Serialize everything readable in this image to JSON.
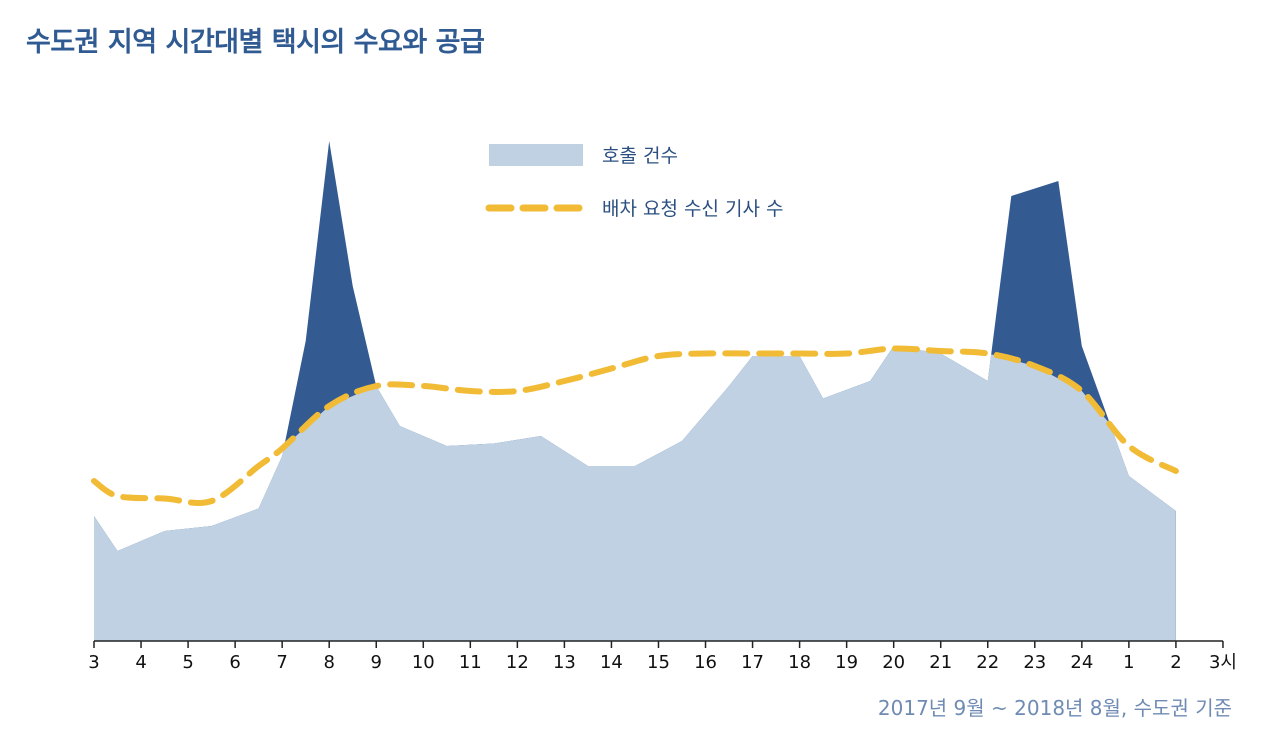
{
  "title": "수도권 지역 시간대별 택시의 수요와 공급",
  "source": "2017년 9월 ~ 2018년 8월, 수도권 기준",
  "colors": {
    "area": "#bfd1e2",
    "excess": "#335b92",
    "line": "#f1bb36",
    "axis": "#222222",
    "title": "#2f5a92"
  },
  "chart_data": {
    "type": "area",
    "categories": [
      "3",
      "4",
      "5",
      "6",
      "7",
      "8",
      "9",
      "10",
      "11",
      "12",
      "13",
      "14",
      "15",
      "16",
      "17",
      "18",
      "19",
      "20",
      "21",
      "22",
      "23",
      "24",
      "1",
      "2",
      "3시"
    ],
    "ylim": [
      0,
      100
    ],
    "grid": false,
    "legend_position": "top-center",
    "series": [
      {
        "name": "호출 건수",
        "kind": "area",
        "points": [
          [
            0,
            25
          ],
          [
            0.5,
            18
          ],
          [
            1.5,
            22
          ],
          [
            2.5,
            23
          ],
          [
            3.5,
            26.5
          ],
          [
            4,
            37
          ],
          [
            4.5,
            60
          ],
          [
            5,
            100
          ],
          [
            5.5,
            71
          ],
          [
            6,
            51
          ],
          [
            6.5,
            43
          ],
          [
            7.5,
            39
          ],
          [
            8.5,
            39.5
          ],
          [
            9.5,
            41
          ],
          [
            10.5,
            35
          ],
          [
            11.5,
            35
          ],
          [
            12.5,
            40
          ],
          [
            13.5,
            51
          ],
          [
            14,
            57
          ],
          [
            15,
            57
          ],
          [
            15.5,
            48.5
          ],
          [
            16.5,
            52
          ],
          [
            17,
            59
          ],
          [
            18,
            57.5
          ],
          [
            19,
            52
          ],
          [
            19.5,
            89
          ],
          [
            20.5,
            92
          ],
          [
            21,
            59
          ],
          [
            22,
            33
          ],
          [
            23,
            26
          ]
        ]
      },
      {
        "name": "배차 요청 수신 기사 수",
        "kind": "dashed-line",
        "points": [
          [
            0,
            32
          ],
          [
            0.5,
            29
          ],
          [
            1.5,
            28.5
          ],
          [
            2.5,
            28
          ],
          [
            3.5,
            35
          ],
          [
            4,
            38.5
          ],
          [
            5,
            47
          ],
          [
            6,
            51
          ],
          [
            7,
            51
          ],
          [
            8,
            50
          ],
          [
            9,
            50
          ],
          [
            10,
            52
          ],
          [
            11,
            54.5
          ],
          [
            12,
            57
          ],
          [
            13,
            57.5
          ],
          [
            14,
            57.5
          ],
          [
            15,
            57.5
          ],
          [
            16,
            57.5
          ],
          [
            17,
            58.5
          ],
          [
            18,
            58
          ],
          [
            19,
            57.5
          ],
          [
            20,
            55
          ],
          [
            21,
            50
          ],
          [
            22,
            39
          ],
          [
            23,
            34
          ]
        ]
      }
    ]
  }
}
